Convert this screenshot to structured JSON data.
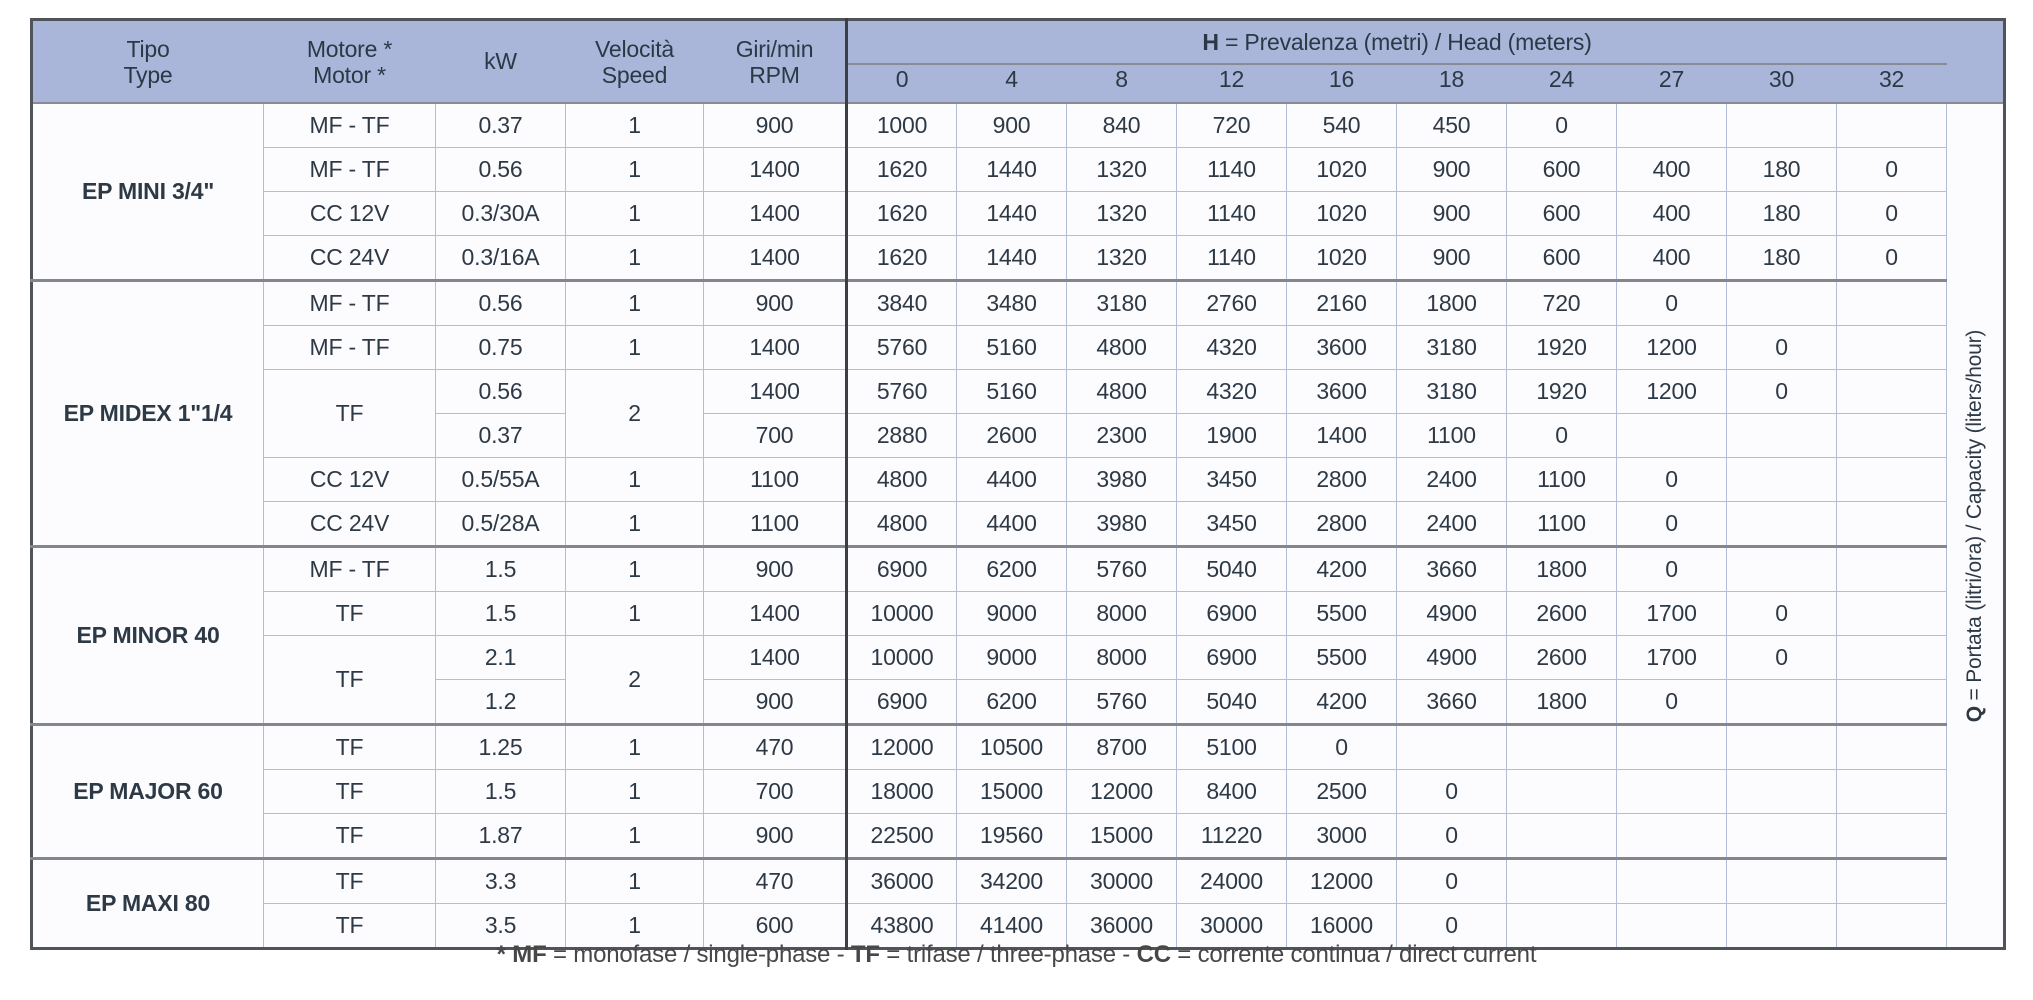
{
  "table": {
    "header": {
      "tipo": [
        "Tipo",
        "Type"
      ],
      "motore": [
        "Motore *",
        "Motor *"
      ],
      "kw": "kW",
      "velocita": [
        "Velocità",
        "Speed"
      ],
      "giri": [
        "Giri/min",
        "RPM"
      ],
      "h_label": [
        {
          "t": "H",
          "b": true
        },
        {
          "t": " = Prevalenza (metri) / Head (meters)",
          "b": false
        }
      ],
      "h_columns": [
        "0",
        "4",
        "8",
        "12",
        "16",
        "18",
        "24",
        "27",
        "30",
        "32"
      ]
    },
    "groups": [
      {
        "type": "EP MINI 3/4\"",
        "rows": [
          {
            "motor": "MF - TF",
            "kw": "0.37",
            "speed": "1",
            "rpm": "900",
            "values": [
              "1000",
              "900",
              "840",
              "720",
              "540",
              "450",
              "0",
              "",
              "",
              ""
            ]
          },
          {
            "motor": "MF - TF",
            "kw": "0.56",
            "speed": "1",
            "rpm": "1400",
            "values": [
              "1620",
              "1440",
              "1320",
              "1140",
              "1020",
              "900",
              "600",
              "400",
              "180",
              "0"
            ]
          },
          {
            "motor": "CC 12V",
            "kw": "0.3/30A",
            "speed": "1",
            "rpm": "1400",
            "values": [
              "1620",
              "1440",
              "1320",
              "1140",
              "1020",
              "900",
              "600",
              "400",
              "180",
              "0"
            ]
          },
          {
            "motor": "CC 24V",
            "kw": "0.3/16A",
            "speed": "1",
            "rpm": "1400",
            "values": [
              "1620",
              "1440",
              "1320",
              "1140",
              "1020",
              "900",
              "600",
              "400",
              "180",
              "0"
            ]
          }
        ]
      },
      {
        "type": "EP MIDEX 1\"1/4",
        "rows": [
          {
            "motor": "MF - TF",
            "kw": "0.56",
            "speed": "1",
            "rpm": "900",
            "values": [
              "3840",
              "3480",
              "3180",
              "2760",
              "2160",
              "1800",
              "720",
              "0",
              "",
              ""
            ]
          },
          {
            "motor": "MF - TF",
            "kw": "0.75",
            "speed": "1",
            "rpm": "1400",
            "values": [
              "5760",
              "5160",
              "4800",
              "4320",
              "3600",
              "3180",
              "1920",
              "1200",
              "0",
              ""
            ]
          },
          {
            "motor": "TF",
            "motor_span": 2,
            "kw": "0.56",
            "pair": "start",
            "speed": "2",
            "speed_span": 2,
            "rpm": "1400",
            "values": [
              "5760",
              "5160",
              "4800",
              "4320",
              "3600",
              "3180",
              "1920",
              "1200",
              "0",
              ""
            ]
          },
          {
            "motor": null,
            "kw": "0.37",
            "pair": "end",
            "speed": null,
            "rpm": "700",
            "values": [
              "2880",
              "2600",
              "2300",
              "1900",
              "1400",
              "1100",
              "0",
              "",
              "",
              ""
            ]
          },
          {
            "motor": "CC 12V",
            "kw": "0.5/55A",
            "speed": "1",
            "rpm": "1100",
            "values": [
              "4800",
              "4400",
              "3980",
              "3450",
              "2800",
              "2400",
              "1100",
              "0",
              "",
              ""
            ]
          },
          {
            "motor": "CC 24V",
            "kw": "0.5/28A",
            "speed": "1",
            "rpm": "1100",
            "values": [
              "4800",
              "4400",
              "3980",
              "3450",
              "2800",
              "2400",
              "1100",
              "0",
              "",
              ""
            ]
          }
        ]
      },
      {
        "type": "EP MINOR 40",
        "rows": [
          {
            "motor": "MF - TF",
            "kw": "1.5",
            "speed": "1",
            "rpm": "900",
            "values": [
              "6900",
              "6200",
              "5760",
              "5040",
              "4200",
              "3660",
              "1800",
              "0",
              "",
              ""
            ]
          },
          {
            "motor": "TF",
            "kw": "1.5",
            "speed": "1",
            "rpm": "1400",
            "values": [
              "10000",
              "9000",
              "8000",
              "6900",
              "5500",
              "4900",
              "2600",
              "1700",
              "0",
              ""
            ]
          },
          {
            "motor": "TF",
            "motor_span": 2,
            "kw": "2.1",
            "pair": "start",
            "speed": "2",
            "speed_span": 2,
            "rpm": "1400",
            "values": [
              "10000",
              "9000",
              "8000",
              "6900",
              "5500",
              "4900",
              "2600",
              "1700",
              "0",
              ""
            ]
          },
          {
            "motor": null,
            "kw": "1.2",
            "pair": "end",
            "speed": null,
            "rpm": "900",
            "values": [
              "6900",
              "6200",
              "5760",
              "5040",
              "4200",
              "3660",
              "1800",
              "0",
              "",
              ""
            ]
          }
        ]
      },
      {
        "type": "EP MAJOR 60",
        "rows": [
          {
            "motor": "TF",
            "kw": "1.25",
            "speed": "1",
            "rpm": "470",
            "values": [
              "12000",
              "10500",
              "8700",
              "5100",
              "0",
              "",
              "",
              "",
              "",
              ""
            ]
          },
          {
            "motor": "TF",
            "kw": "1.5",
            "speed": "1",
            "rpm": "700",
            "values": [
              "18000",
              "15000",
              "12000",
              "8400",
              "2500",
              "0",
              "",
              "",
              "",
              ""
            ]
          },
          {
            "motor": "TF",
            "kw": "1.87",
            "speed": "1",
            "rpm": "900",
            "values": [
              "22500",
              "19560",
              "15000",
              "11220",
              "3000",
              "0",
              "",
              "",
              "",
              ""
            ]
          }
        ]
      },
      {
        "type": "EP MAXI 80",
        "rows": [
          {
            "motor": "TF",
            "kw": "3.3",
            "speed": "1",
            "rpm": "470",
            "values": [
              "36000",
              "34200",
              "30000",
              "24000",
              "12000",
              "0",
              "",
              "",
              "",
              ""
            ]
          },
          {
            "motor": "TF",
            "kw": "3.5",
            "speed": "1",
            "rpm": "600",
            "values": [
              "43800",
              "41400",
              "36000",
              "30000",
              "16000",
              "0",
              "",
              "",
              "",
              ""
            ]
          }
        ]
      }
    ]
  },
  "q_label_segments": [
    {
      "t": "Q",
      "b": true
    },
    {
      "t": " = Portata (litri/ora) / Capacity (liters/hour)",
      "b": false
    }
  ],
  "footnote_segments": [
    {
      "t": "* MF",
      "b": true
    },
    {
      "t": " = monofase / single-phase - ",
      "b": false
    },
    {
      "t": "TF",
      "b": true
    },
    {
      "t": " = trifase / three-phase - ",
      "b": false
    },
    {
      "t": "CC",
      "b": true
    },
    {
      "t": " = corrente continua / direct current",
      "b": false
    }
  ],
  "colors": {
    "header_bg": "#a9b6da",
    "type_column_bg": "#e6e8f3",
    "cell_bg": "#fcfcfe",
    "text": "#2e3946",
    "light_grid_line": "#b2bdd9",
    "group_separator": "#83878d",
    "outer_border": "#4f535a",
    "head_divider": "#3b3e44"
  }
}
